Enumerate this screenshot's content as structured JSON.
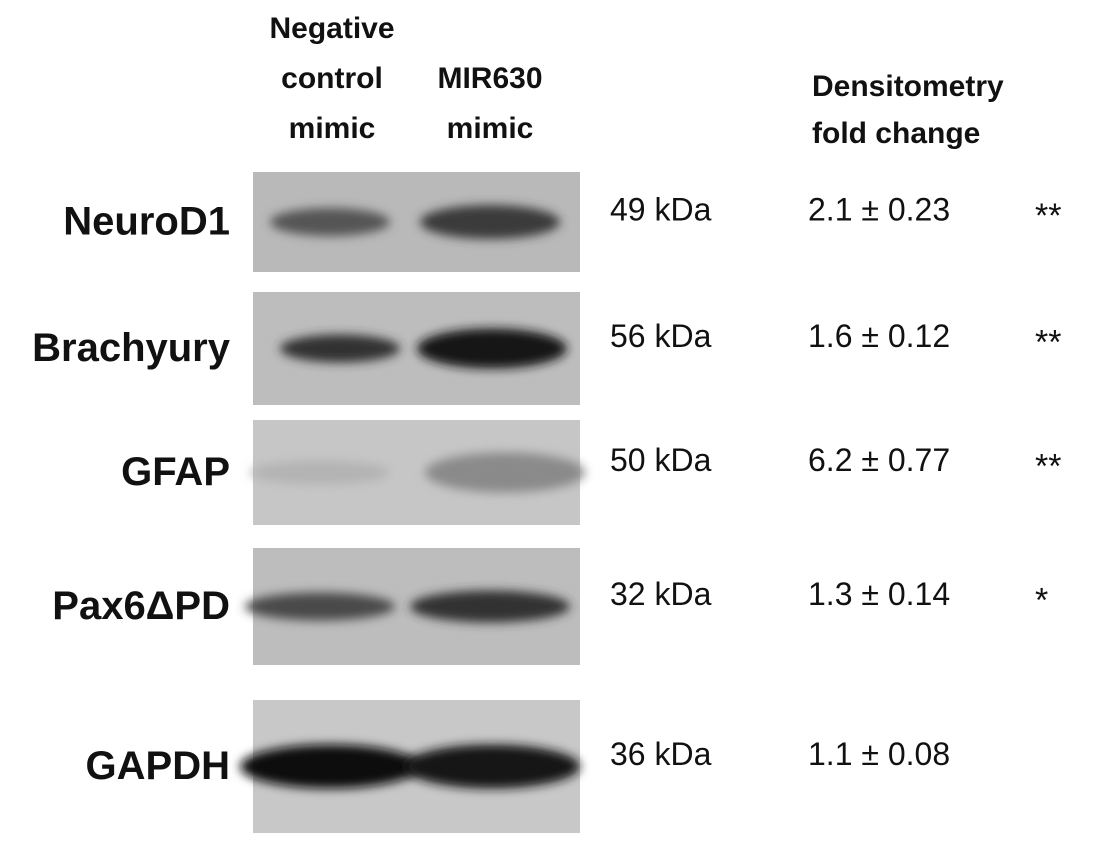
{
  "header": {
    "columns": [
      {
        "lines": [
          "Negative",
          "control",
          "mimic"
        ]
      },
      {
        "lines": [
          "MIR630",
          "mimic"
        ]
      },
      {
        "lines": [
          "Densitometry",
          "fold change"
        ]
      }
    ]
  },
  "rows": [
    {
      "label": "NeuroD1",
      "kda": "49 kDa",
      "fold_change": "2.1 ± 0.23",
      "significance": "**"
    },
    {
      "label": "Brachyury",
      "kda": "56 kDa",
      "fold_change": "1.6 ± 0.12",
      "significance": "**"
    },
    {
      "label": "GFAP",
      "kda": "50 kDa",
      "fold_change": "6.2 ± 0.77",
      "significance": "**"
    },
    {
      "label": "Pax6ΔPD",
      "kda": "32 kDa",
      "fold_change": "1.3 ± 0.14",
      "significance": "*"
    },
    {
      "label": "GAPDH",
      "kda": "36 kDa",
      "fold_change": "1.1 ± 0.08"
    }
  ]
}
